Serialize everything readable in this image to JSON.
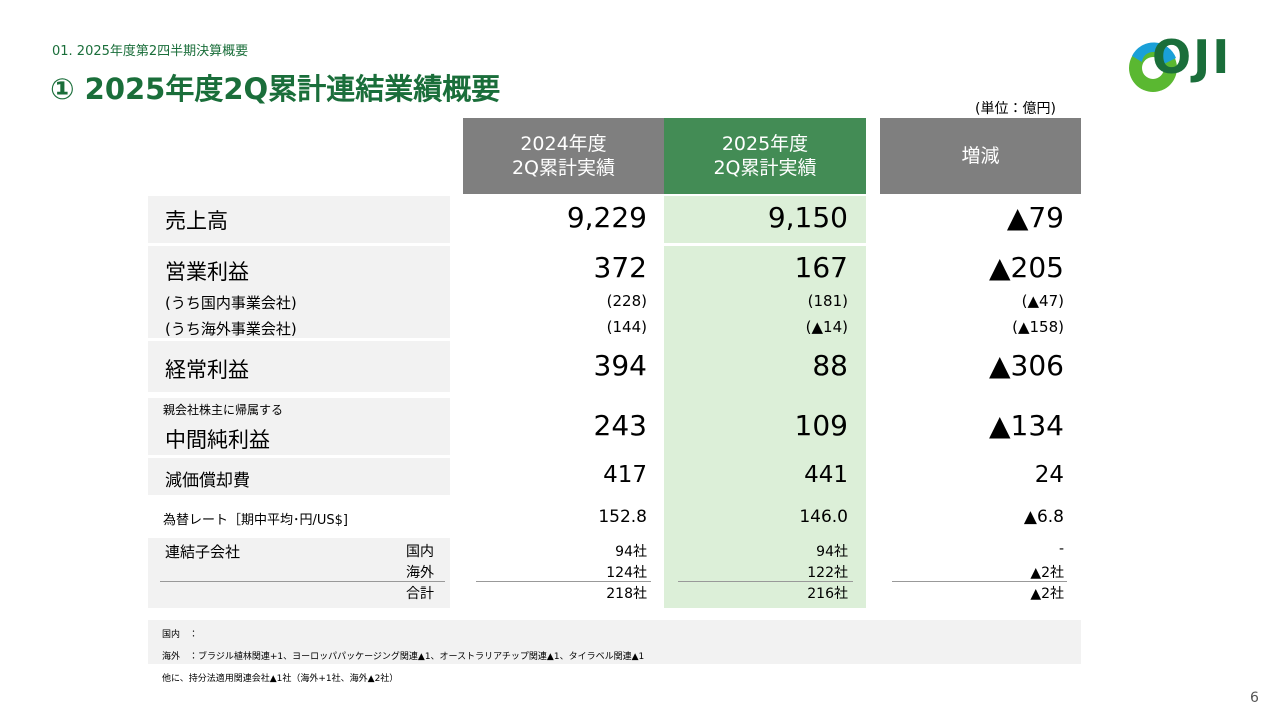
{
  "header": {
    "section": "01. 2025年度第2四半期決算概要",
    "title": "① 2025年度2Q累計連結業績概要",
    "unit": "(単位：億円)",
    "logo": "OJI"
  },
  "table": {
    "columns": [
      [
        "2024年度",
        "2Q累計実績"
      ],
      [
        "2025年度",
        "2Q累計実績"
      ],
      [
        "増減"
      ]
    ],
    "rows": [
      {
        "label": "売上高",
        "values": [
          "9,229",
          "9,150",
          "▲79"
        ]
      },
      {
        "label": "営業利益",
        "values": [
          "372",
          "167",
          "▲205"
        ],
        "sub": [
          {
            "label": "(うち国内事業会社)",
            "values": [
              "(228)",
              "(181)",
              "(▲47)"
            ]
          },
          {
            "label": "(うち海外事業会社)",
            "values": [
              "(144)",
              "(▲14)",
              "(▲158)"
            ]
          }
        ]
      },
      {
        "label": "経常利益",
        "values": [
          "394",
          "88",
          "▲306"
        ]
      },
      {
        "note": "親会社株主に帰属する",
        "label": "中間純利益",
        "values": [
          "243",
          "109",
          "▲134"
        ]
      },
      {
        "label": "減価償却費",
        "values": [
          "417",
          "441",
          "24"
        ]
      },
      {
        "label": "為替レート［期中平均･円/US$]",
        "values": [
          "152.8",
          "146.0",
          "▲6.8"
        ]
      }
    ],
    "subsidiaries": {
      "label": "連結子会社",
      "rows": [
        {
          "label": "国内",
          "values": [
            "94社",
            "94社",
            "-"
          ]
        },
        {
          "label": "海外",
          "values": [
            "124社",
            "122社",
            "▲2社"
          ]
        },
        {
          "label": "合計",
          "values": [
            "218社",
            "216社",
            "▲2社"
          ]
        }
      ]
    }
  },
  "notes": [
    "国内　：",
    "海外　：ブラジル植林関連+1、ヨーロッパパッケージング関連▲1、オーストラリアチップ関連▲1、タイラベル関連▲1",
    "他に、持分法適用関連会社▲1社（海外+1社、海外▲2社）"
  ],
  "page_number": "6"
}
